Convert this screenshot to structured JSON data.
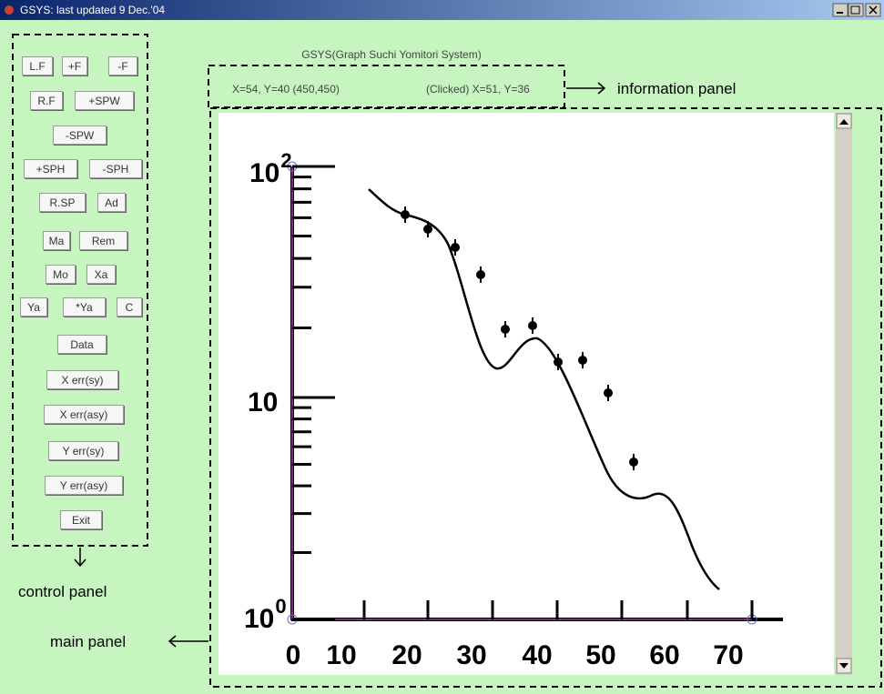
{
  "window": {
    "title": "GSYS:  last updated  9 Dec.'04"
  },
  "header": "GSYS(Graph Suchi Yomitori System)",
  "info_panel": {
    "position": "X=54, Y=40 (450,450)",
    "clicked": "(Clicked) X=51, Y=36"
  },
  "control_panel": {
    "rows": [
      [
        "L.F",
        "+F",
        "-F"
      ],
      [
        "R.F",
        "+SPW"
      ],
      [
        "-SPW"
      ],
      [
        "+SPH",
        "-SPH"
      ],
      [
        "R.SP",
        "Ad"
      ],
      [
        "Ma",
        "Rem"
      ],
      [
        "Mo",
        "Xa"
      ],
      [
        "Ya",
        "*Ya",
        "C"
      ],
      [
        "Data"
      ],
      [
        "X err(sy)"
      ],
      [
        "X err(asy)"
      ],
      [
        "Y err(sy)"
      ],
      [
        "Y err(asy)"
      ],
      [
        "Exit"
      ]
    ]
  },
  "annotations": {
    "information_panel": "information panel",
    "control_panel": "control panel",
    "main_panel": "main panel"
  },
  "plot": {
    "x_tick_labels": [
      "0",
      "10",
      "20",
      "30",
      "40",
      "50",
      "60",
      "70"
    ],
    "y_tick_labels": [
      {
        "base": "10",
        "exponent": "2"
      },
      {
        "base": "10"
      },
      {
        "base": "10",
        "exponent": "0"
      }
    ]
  }
}
